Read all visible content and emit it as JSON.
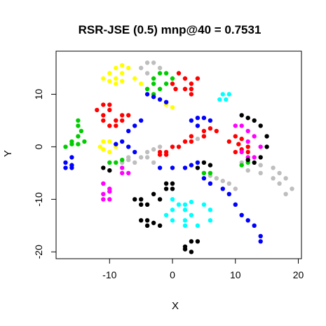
{
  "chart_data": {
    "type": "scatter",
    "title": "RSR-JSE (0.5) mnp@40 = 0.7531",
    "xlabel": "X",
    "ylabel": "Y",
    "xlim": [
      -18.5,
      20.5
    ],
    "ylim": [
      -21.3,
      18.2
    ],
    "xticks": [
      -10,
      0,
      10,
      20
    ],
    "yticks": [
      -20,
      -10,
      0,
      10
    ],
    "grid": false,
    "legend": "none",
    "colors": {
      "black": "#000000",
      "red": "#ff0000",
      "green": "#00cd00",
      "blue": "#0000ff",
      "cyan": "#00ffff",
      "magenta": "#ff00ff",
      "yellow": "#ffff00",
      "gray": "#bebebe"
    },
    "series": [
      {
        "color": "yellow",
        "points": [
          [
            -11,
            13
          ],
          [
            -10,
            14
          ],
          [
            -9,
            15
          ],
          [
            -8,
            15.5
          ],
          [
            -7,
            15
          ],
          [
            -8,
            14
          ],
          [
            -9,
            13
          ],
          [
            -10,
            12.5
          ],
          [
            -9,
            12
          ],
          [
            -8,
            12.5
          ],
          [
            -6,
            13
          ],
          [
            -5,
            12
          ],
          [
            -4,
            11
          ],
          [
            -3,
            10
          ],
          [
            -2,
            9
          ],
          [
            -1,
            8
          ],
          [
            0,
            7.5
          ]
        ]
      },
      {
        "color": "yellow",
        "points": [
          [
            -11.5,
            0
          ],
          [
            -11,
            1
          ],
          [
            -10,
            1
          ],
          [
            -9,
            0
          ],
          [
            -10,
            -1
          ],
          [
            -11,
            -0.5
          ]
        ]
      },
      {
        "color": "gray",
        "points": [
          [
            -5,
            15
          ],
          [
            -4,
            16
          ],
          [
            -3,
            16
          ],
          [
            -2,
            15
          ],
          [
            -4,
            14
          ]
        ]
      },
      {
        "color": "gray",
        "points": [
          [
            -8,
            -3
          ],
          [
            -7,
            -2.5
          ],
          [
            -5,
            -2
          ],
          [
            -4,
            -1
          ],
          [
            -3,
            -0.5
          ],
          [
            -2,
            0
          ],
          [
            2,
            1
          ],
          [
            4,
            1.5
          ],
          [
            5,
            2
          ]
        ]
      },
      {
        "color": "gray",
        "points": [
          [
            11,
            -3
          ],
          [
            12,
            -3
          ],
          [
            14,
            -3.5
          ],
          [
            16,
            -4
          ],
          [
            17,
            -5
          ],
          [
            18,
            -6
          ],
          [
            19,
            -8
          ],
          [
            18,
            -9
          ],
          [
            17,
            -7
          ],
          [
            16,
            -6
          ],
          [
            14,
            -5
          ],
          [
            12,
            -4.5
          ]
        ]
      },
      {
        "color": "gray",
        "points": [
          [
            5,
            -5
          ],
          [
            6,
            -5.5
          ],
          [
            7,
            -6
          ],
          [
            8,
            -6.5
          ],
          [
            9,
            -7
          ],
          [
            10,
            -8
          ]
        ]
      },
      {
        "color": "gray",
        "points": [
          [
            -4,
            -2
          ],
          [
            -3,
            -3
          ],
          [
            -6,
            -3
          ],
          [
            -7,
            -2
          ]
        ]
      },
      {
        "color": "green",
        "points": [
          [
            -3,
            13
          ],
          [
            -2,
            14
          ],
          [
            -1,
            14
          ],
          [
            0,
            13
          ],
          [
            -1,
            12
          ],
          [
            -2,
            11
          ],
          [
            -3,
            10
          ],
          [
            -4,
            11
          ],
          [
            -3,
            12
          ]
        ]
      },
      {
        "color": "green",
        "points": [
          [
            -15,
            5
          ],
          [
            -15,
            4
          ],
          [
            -14.5,
            3
          ],
          [
            -15,
            2
          ],
          [
            -16,
            1
          ],
          [
            -17,
            0
          ],
          [
            -16,
            0.5
          ],
          [
            -15,
            0.5
          ],
          [
            -14,
            1
          ]
        ]
      },
      {
        "color": "green",
        "points": [
          [
            -10,
            -3
          ],
          [
            -9,
            -3
          ],
          [
            -8,
            -2.5
          ],
          [
            6,
            -5
          ],
          [
            5,
            -5
          ],
          [
            11,
            -3.5
          ],
          [
            12,
            -3
          ]
        ]
      },
      {
        "color": "red",
        "points": [
          [
            1,
            14
          ],
          [
            2,
            13
          ],
          [
            2,
            11
          ],
          [
            3,
            12
          ],
          [
            4,
            13
          ],
          [
            3,
            11
          ],
          [
            3,
            10
          ],
          [
            0,
            12
          ],
          [
            0.5,
            11
          ]
        ]
      },
      {
        "color": "red",
        "points": [
          [
            -12,
            7
          ],
          [
            -11,
            8
          ],
          [
            -10,
            8
          ],
          [
            -10,
            7
          ],
          [
            -11,
            6
          ],
          [
            -11,
            5
          ],
          [
            -10,
            4
          ],
          [
            -9,
            5
          ],
          [
            -8,
            6
          ],
          [
            -7,
            6
          ],
          [
            -8,
            5
          ],
          [
            -9,
            4
          ]
        ]
      },
      {
        "color": "red",
        "points": [
          [
            -2,
            -1
          ],
          [
            -1,
            -1
          ],
          [
            0,
            0
          ],
          [
            2,
            1
          ],
          [
            3,
            2
          ],
          [
            5,
            3
          ],
          [
            6,
            3.5
          ],
          [
            7,
            3
          ],
          [
            5,
            2
          ],
          [
            3,
            1
          ],
          [
            1,
            0
          ],
          [
            -1,
            -1.5
          ],
          [
            -2,
            -1.5
          ]
        ]
      },
      {
        "color": "red",
        "points": [
          [
            9,
            1
          ],
          [
            10,
            2
          ],
          [
            11,
            1.5
          ],
          [
            10.5,
            0.5
          ],
          [
            11,
            -0.5
          ],
          [
            12,
            0
          ],
          [
            12,
            -1
          ],
          [
            10,
            -1
          ]
        ]
      },
      {
        "color": "blue",
        "points": [
          [
            -4,
            10
          ],
          [
            -3,
            9.5
          ],
          [
            -2,
            9
          ],
          [
            -1,
            8.5
          ],
          [
            -5,
            5
          ],
          [
            -6,
            4
          ],
          [
            -7,
            3
          ],
          [
            -8,
            1
          ],
          [
            -9,
            0.5
          ],
          [
            -7,
            0
          ],
          [
            -6,
            -1
          ]
        ]
      },
      {
        "color": "blue",
        "points": [
          [
            -17,
            -3
          ],
          [
            -16,
            -2
          ],
          [
            -16,
            -3.5
          ],
          [
            -17,
            -4
          ],
          [
            -16,
            -4
          ]
        ]
      },
      {
        "color": "blue",
        "points": [
          [
            3,
            5
          ],
          [
            4,
            5.5
          ],
          [
            5,
            5.5
          ],
          [
            6,
            5
          ],
          [
            4,
            4
          ],
          [
            -2,
            -4
          ],
          [
            0,
            -4
          ],
          [
            2,
            -4
          ],
          [
            3,
            -3.5
          ],
          [
            4,
            -3
          ],
          [
            5,
            -6
          ],
          [
            6,
            -7
          ],
          [
            8,
            -8
          ],
          [
            9,
            -9
          ],
          [
            10,
            -11
          ],
          [
            11,
            -13
          ],
          [
            12,
            -14
          ],
          [
            13,
            -15
          ],
          [
            14,
            -17
          ],
          [
            14,
            -18
          ]
        ]
      },
      {
        "color": "cyan",
        "points": [
          [
            8,
            10
          ],
          [
            9,
            10
          ],
          [
            8.5,
            9
          ],
          [
            7.5,
            9
          ]
        ]
      },
      {
        "color": "cyan",
        "points": [
          [
            0,
            -10
          ],
          [
            1,
            -11
          ],
          [
            2,
            -11
          ],
          [
            3,
            -10.5
          ],
          [
            5,
            -11
          ],
          [
            6,
            -12
          ],
          [
            6,
            -14
          ],
          [
            4,
            -15
          ],
          [
            2,
            -15
          ],
          [
            0,
            -14
          ],
          [
            -1,
            -13
          ],
          [
            0,
            -12
          ],
          [
            2,
            -12
          ],
          [
            3,
            -13
          ],
          [
            2,
            -14
          ]
        ]
      },
      {
        "color": "magenta",
        "points": [
          [
            -10,
            -8
          ],
          [
            -11,
            -7
          ],
          [
            -11,
            -9
          ],
          [
            -10,
            -10
          ],
          [
            -11,
            -10
          ],
          [
            -10,
            -8.5
          ]
        ]
      },
      {
        "color": "magenta",
        "points": [
          [
            -8,
            -4
          ],
          [
            -8,
            -5
          ],
          [
            -7,
            -5
          ],
          [
            10,
            4
          ],
          [
            11,
            4
          ],
          [
            12,
            3
          ],
          [
            13,
            2
          ],
          [
            14,
            0
          ],
          [
            13,
            -2
          ],
          [
            12,
            -2
          ],
          [
            11,
            -1
          ],
          [
            12,
            1
          ]
        ]
      },
      {
        "color": "black",
        "points": [
          [
            11,
            6
          ],
          [
            12,
            5.5
          ],
          [
            13,
            5
          ],
          [
            14,
            4
          ],
          [
            15,
            2
          ],
          [
            15,
            0
          ],
          [
            14,
            -2
          ],
          [
            13,
            -3
          ],
          [
            12,
            -2.5
          ]
        ]
      },
      {
        "color": "black",
        "points": [
          [
            -1,
            -7
          ],
          [
            0,
            -7
          ],
          [
            -1,
            -8
          ],
          [
            -3,
            -9
          ],
          [
            -5,
            -10
          ],
          [
            -6,
            -10
          ],
          [
            -5,
            -11
          ],
          [
            -4,
            -11
          ],
          [
            -2,
            -10
          ],
          [
            0,
            -8
          ]
        ]
      },
      {
        "color": "black",
        "points": [
          [
            -5,
            -14
          ],
          [
            -4,
            -15
          ],
          [
            -3,
            -14.5
          ],
          [
            -2,
            -15
          ],
          [
            -4,
            -14
          ]
        ]
      },
      {
        "color": "black",
        "points": [
          [
            2,
            -19
          ],
          [
            3,
            -18
          ],
          [
            4,
            -18
          ],
          [
            3,
            -20
          ],
          [
            2,
            -19.5
          ]
        ]
      },
      {
        "color": "black",
        "points": [
          [
            4,
            -4
          ],
          [
            5,
            -3
          ],
          [
            6,
            -3.5
          ],
          [
            -11,
            -4
          ],
          [
            -10,
            -4.5
          ]
        ]
      }
    ]
  }
}
